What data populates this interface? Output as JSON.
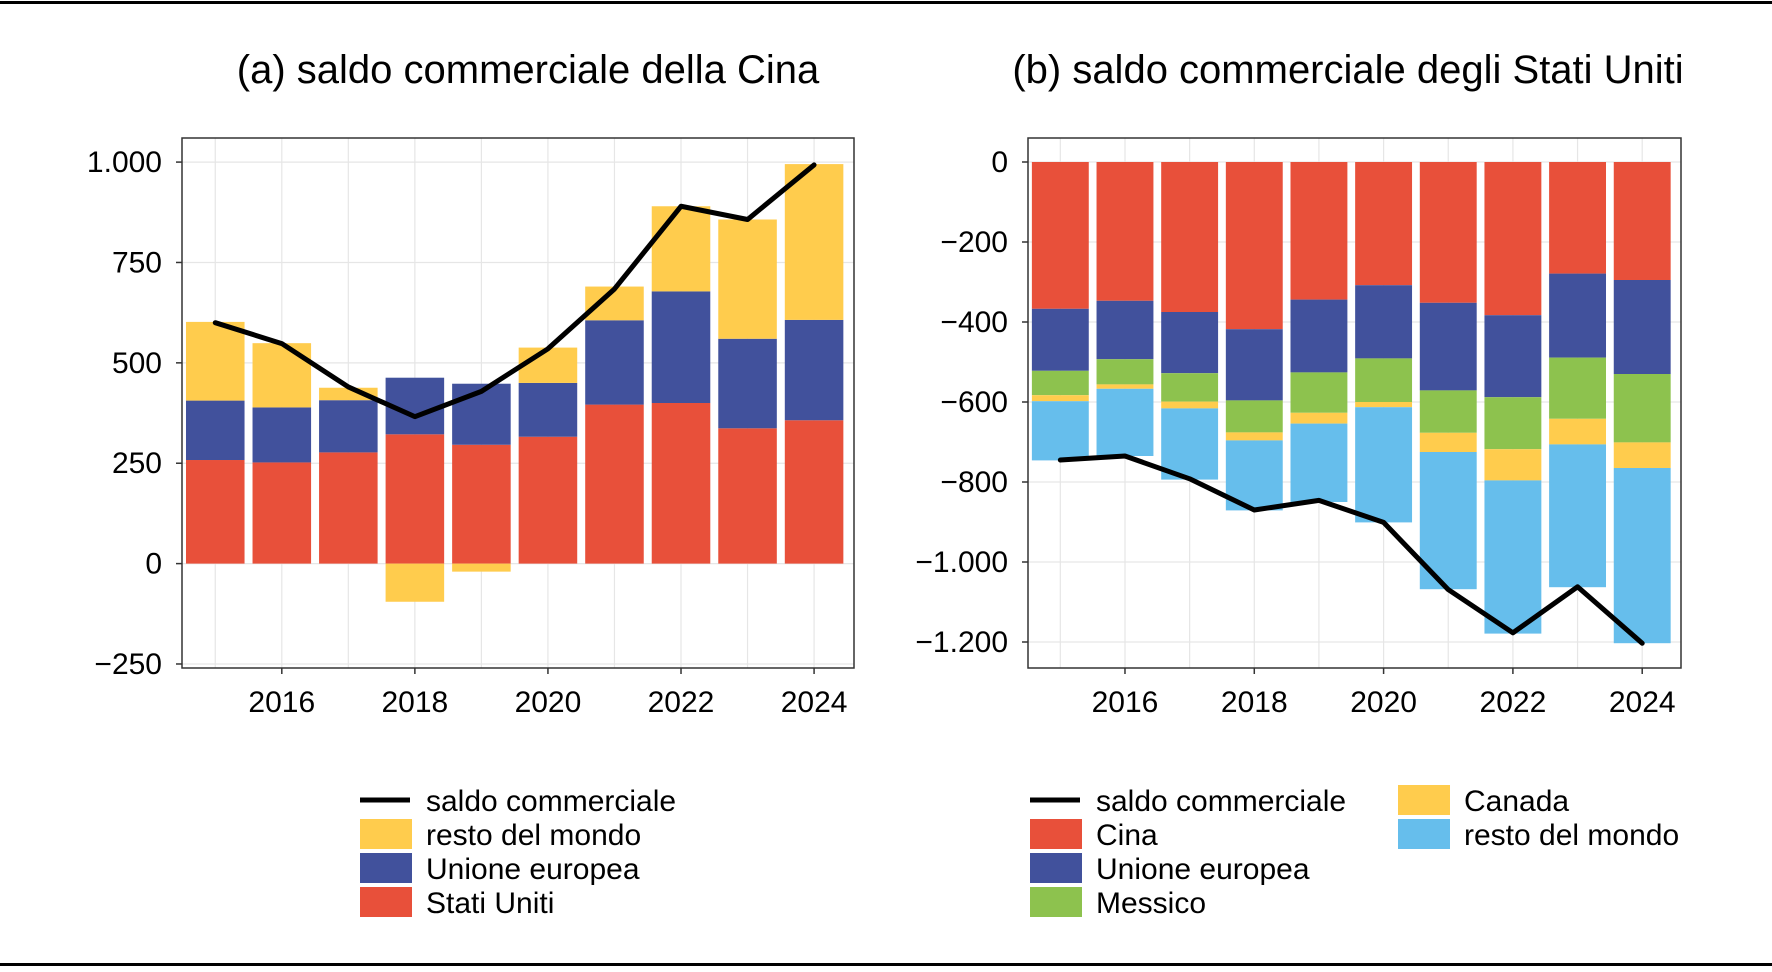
{
  "colors": {
    "red": "#E8503A",
    "blue": "#41519C",
    "yellow": "#FFCC4D",
    "green": "#8DC24E",
    "lightblue": "#66BEEC",
    "line": "#000000"
  },
  "chart_data": [
    {
      "type": "bar",
      "stacked": true,
      "title": "(a) saldo commerciale della Cina",
      "x": [
        2015,
        2016,
        2017,
        2018,
        2019,
        2020,
        2021,
        2022,
        2023,
        2024
      ],
      "x_ticks": [
        "2016",
        "2018",
        "2020",
        "2022",
        "2024"
      ],
      "ylim": [
        -260,
        1060
      ],
      "y_ticks": [
        -250,
        0,
        250,
        500,
        750,
        1000
      ],
      "y_tick_labels": [
        "−250",
        "0",
        "250",
        "500",
        "750",
        "1.000"
      ],
      "grid": true,
      "series": [
        {
          "name": "Stati Uniti",
          "color": "#E8503A",
          "values": [
            258,
            252,
            277,
            322,
            296,
            316,
            396,
            400,
            337,
            357
          ]
        },
        {
          "name": "Unione europea",
          "color": "#41519C",
          "values": [
            148,
            137,
            130,
            141,
            152,
            134,
            210,
            278,
            223,
            250
          ]
        },
        {
          "name": "resto del mondo",
          "color": "#FFCC4D",
          "values": [
            196,
            160,
            31,
            -95,
            -20,
            88,
            84,
            212,
            297,
            388
          ]
        }
      ],
      "line": {
        "name": "saldo commerciale",
        "values": [
          600,
          548,
          440,
          366,
          429,
          535,
          684,
          890,
          857,
          993
        ]
      },
      "legend": {
        "position": "bottom",
        "items": [
          {
            "label": "saldo commerciale",
            "kind": "line",
            "color": "#000000"
          },
          {
            "label": "resto del mondo",
            "kind": "box",
            "color": "#FFCC4D"
          },
          {
            "label": "Unione europea",
            "kind": "box",
            "color": "#41519C"
          },
          {
            "label": "Stati Uniti",
            "kind": "box",
            "color": "#E8503A"
          }
        ]
      }
    },
    {
      "type": "bar",
      "stacked": true,
      "title": "(b) saldo commerciale degli Stati Uniti",
      "x": [
        2015,
        2016,
        2017,
        2018,
        2019,
        2020,
        2021,
        2022,
        2023,
        2024
      ],
      "x_ticks": [
        "2016",
        "2018",
        "2020",
        "2022",
        "2024"
      ],
      "ylim": [
        -1265,
        60
      ],
      "y_ticks": [
        0,
        -200,
        -400,
        -600,
        -800,
        -1000,
        -1200
      ],
      "y_tick_labels": [
        "0",
        "−200",
        "−400",
        "−600",
        "−800",
        "−1.000",
        "−1.200"
      ],
      "grid": true,
      "series": [
        {
          "name": "Cina",
          "color": "#E8503A",
          "values": [
            -367,
            -347,
            -375,
            -418,
            -344,
            -308,
            -352,
            -383,
            -279,
            -295
          ]
        },
        {
          "name": "Unione europea",
          "color": "#41519C",
          "values": [
            -155,
            -146,
            -153,
            -178,
            -182,
            -183,
            -219,
            -205,
            -210,
            -235
          ]
        },
        {
          "name": "Messico",
          "color": "#8DC24E",
          "values": [
            -61,
            -63,
            -71,
            -80,
            -101,
            -109,
            -106,
            -130,
            -153,
            -171
          ]
        },
        {
          "name": "Canada",
          "color": "#FFCC4D",
          "values": [
            -15,
            -11,
            -17,
            -20,
            -27,
            -13,
            -48,
            -78,
            -64,
            -64
          ]
        },
        {
          "name": "resto del mondo",
          "color": "#66BEEC",
          "values": [
            -148,
            -168,
            -178,
            -175,
            -196,
            -288,
            -343,
            -383,
            -357,
            -438
          ]
        }
      ],
      "line": {
        "name": "saldo commerciale",
        "values": [
          -745,
          -735,
          -792,
          -870,
          -846,
          -901,
          -1069,
          -1177,
          -1062,
          -1203
        ]
      },
      "legend": {
        "position": "bottom",
        "items": [
          {
            "label": "saldo commerciale",
            "kind": "line",
            "color": "#000000"
          },
          {
            "label": "Cina",
            "kind": "box",
            "color": "#E8503A"
          },
          {
            "label": "Unione europea",
            "kind": "box",
            "color": "#41519C"
          },
          {
            "label": "Messico",
            "kind": "box",
            "color": "#8DC24E"
          },
          {
            "label": "Canada",
            "kind": "box",
            "color": "#FFCC4D"
          },
          {
            "label": "resto del mondo",
            "kind": "box",
            "color": "#66BEEC"
          }
        ]
      }
    }
  ]
}
